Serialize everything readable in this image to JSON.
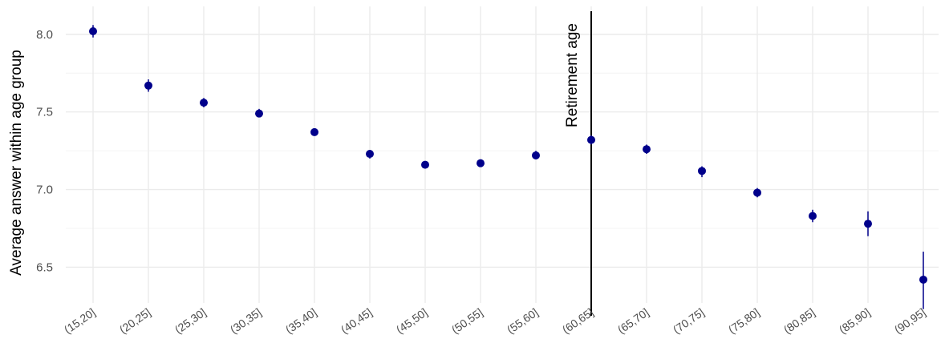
{
  "chart_data": {
    "type": "scatter",
    "title": "",
    "xlabel": "",
    "ylabel": "Average answer within age group",
    "categories": [
      "(15,20]",
      "(20,25]",
      "(25,30]",
      "(30,35]",
      "(35,40]",
      "(40,45]",
      "(45,50]",
      "(50,55]",
      "(55,60]",
      "(60,65]",
      "(65,70]",
      "(70,75]",
      "(75,80]",
      "(80,85]",
      "(85,90]",
      "(90,95]"
    ],
    "values": [
      8.02,
      7.67,
      7.56,
      7.49,
      7.37,
      7.23,
      7.16,
      7.17,
      7.22,
      7.32,
      7.26,
      7.12,
      6.98,
      6.83,
      6.78,
      6.42
    ],
    "error_low": [
      7.98,
      7.63,
      7.53,
      7.47,
      7.35,
      7.2,
      7.14,
      7.15,
      7.2,
      7.29,
      7.23,
      7.08,
      6.95,
      6.79,
      6.7,
      6.23
    ],
    "error_high": [
      8.06,
      7.71,
      7.59,
      7.52,
      7.39,
      7.25,
      7.18,
      7.19,
      7.25,
      7.35,
      7.29,
      7.15,
      7.01,
      6.87,
      6.86,
      6.6
    ],
    "ylim": [
      6.27,
      8.18
    ],
    "yticks": [
      6.5,
      7.0,
      7.5,
      8.0
    ],
    "ytick_labels": [
      "6.5",
      "7.0",
      "7.5",
      "8.0"
    ],
    "grid": true,
    "point_color": "#00008b",
    "vline": {
      "category": "(60,65]",
      "label": "Retirement age",
      "color": "#000000"
    }
  }
}
